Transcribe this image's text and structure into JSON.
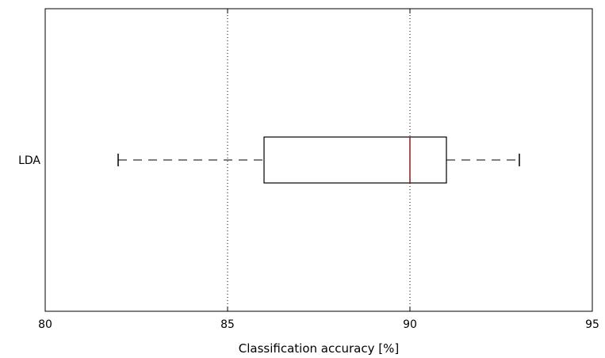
{
  "chart_data": {
    "type": "boxplot",
    "orientation": "horizontal",
    "title": "",
    "xlabel": "Classification accuracy [%]",
    "ylabel": "",
    "xlim": [
      80,
      95
    ],
    "xticks": [
      "80",
      "85",
      "90",
      "95"
    ],
    "grid": "vertical dotted",
    "categories": [
      "LDA"
    ],
    "series": [
      {
        "label": "LDA",
        "whisker_low": 82,
        "q1": 86,
        "median": 90,
        "q3": 91,
        "whisker_high": 93,
        "median_color": "#8b1a1a"
      }
    ]
  }
}
